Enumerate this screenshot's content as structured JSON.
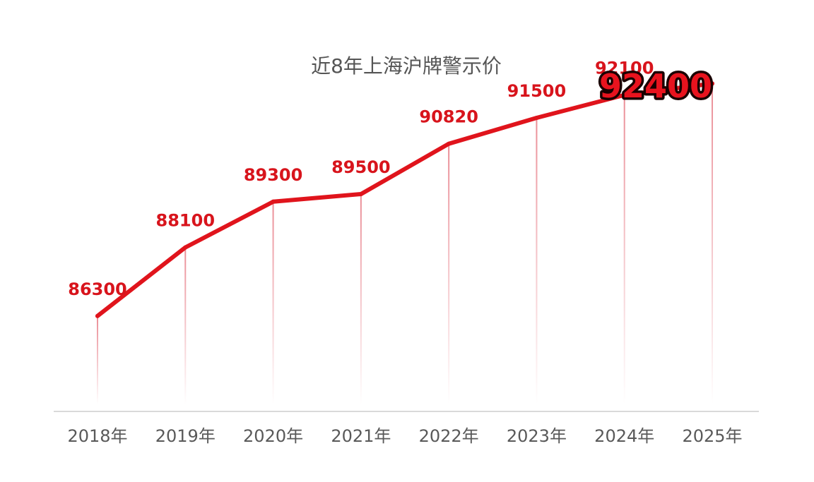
{
  "chart_data": {
    "type": "line",
    "title": "近8年上海沪牌警示价",
    "categories": [
      "2018年",
      "2019年",
      "2020年",
      "2021年",
      "2022年",
      "2023年",
      "2024年",
      "2025年"
    ],
    "series": [
      {
        "values": [
          86300,
          88100,
          89300,
          89500,
          90820,
          91500,
          92100,
          92400
        ]
      }
    ],
    "data_labels": [
      "86300",
      "88100",
      "89300",
      "89500",
      "90820",
      "91500",
      "92100",
      "92400"
    ],
    "highlight_last": true,
    "xlabel": "",
    "ylabel": "",
    "ylim": [
      80000,
      93000
    ],
    "grid": false,
    "line_color": "#e0141c",
    "label_color": "#d8141c",
    "highlight_color": "#e8131e",
    "axis_color": "#d9d9d9",
    "drop_line_color": "#e8808a"
  }
}
